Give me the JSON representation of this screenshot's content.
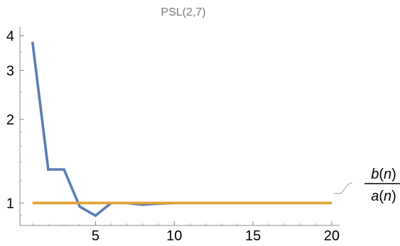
{
  "chart_data": {
    "type": "line",
    "title": "PSL(2,7)",
    "xlabel": "",
    "ylabel": "",
    "xlim": [
      0.2,
      20.5
    ],
    "ylim": [
      0.83,
      4.3
    ],
    "y_scale": "log",
    "grid": false,
    "x_ticks": [
      5,
      10,
      15,
      20
    ],
    "y_ticks": [
      1,
      2,
      3,
      4
    ],
    "series": [
      {
        "name": "",
        "color": "#5a7db4",
        "x": [
          1,
          2,
          3,
          4,
          5,
          6,
          7,
          8,
          9,
          10,
          11,
          12,
          13,
          14,
          15,
          16,
          17,
          18,
          19,
          20
        ],
        "y": [
          3.8,
          1.32,
          1.32,
          0.97,
          0.9,
          1.0,
          1.0,
          0.985,
          0.995,
          1.0,
          1.0,
          1.0,
          1.0,
          1.0,
          1.0,
          1.0,
          1.0,
          1.0,
          1.0,
          1.0
        ]
      },
      {
        "name": "",
        "color": "#e2a234",
        "x": [
          1,
          20
        ],
        "y": [
          1,
          1
        ]
      }
    ],
    "annotation": {
      "numerator_func": "b",
      "denominator_func": "a",
      "variable": "n",
      "open_paren": "(",
      "close_paren": ")",
      "leader_color": "#aaaaaa"
    }
  }
}
